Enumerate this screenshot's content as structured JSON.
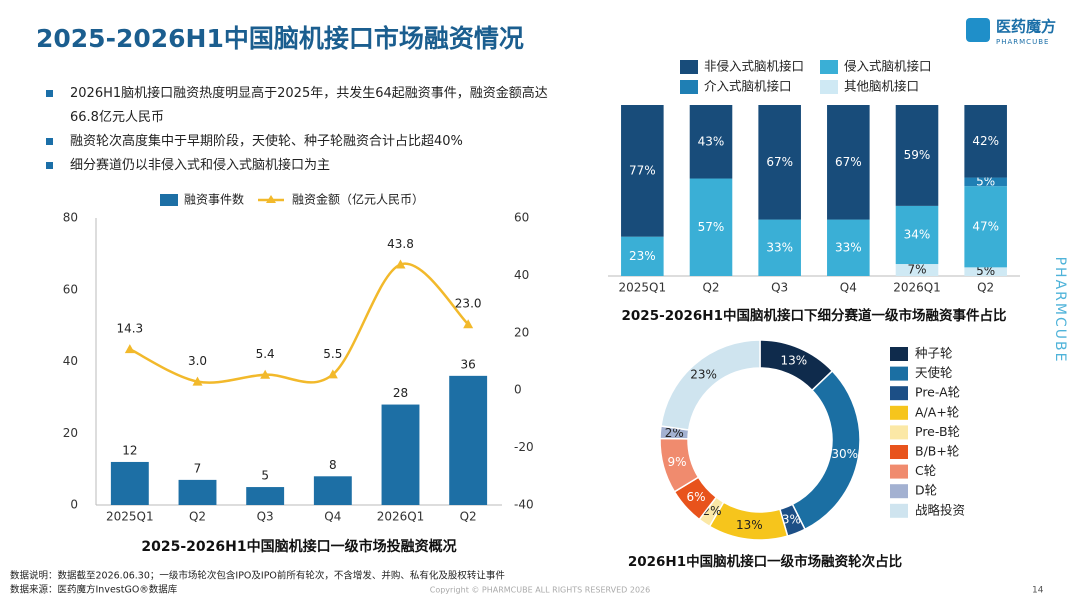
{
  "slide": {
    "title": "2025-2026H1中国脑机接口市场融资情况",
    "bullets": [
      "2026H1脑机接口融资热度明显高于2025年，共发生64起融资事件，融资金额高达66.8亿元人民币",
      "融资轮次高度集中于早期阶段，天使轮、种子轮融资合计占比超40%",
      "细分赛道仍以非侵入式和侵入式脑机接口为主"
    ],
    "logo": {
      "name": "医药魔方",
      "sub": "PHARMCUBE"
    },
    "side_brand": "PHARMCUBE",
    "notes": [
      "数据说明：数据截至2026.06.30；一级市场轮次包含IPO及IPO前所有轮次，不含增发、并购、私有化及股权转让事件",
      "数据来源：医药魔方InvestGO®数据库"
    ],
    "copyright": "Copyright © PHARMCUBE ALL RIGHTS RESERVED 2026",
    "page": 14
  },
  "chart_data": [
    {
      "type": "combo",
      "title": "2025-2026H1中国脑机接口一级市场投融资概况",
      "categories": [
        "2025Q1",
        "Q2",
        "Q3",
        "Q4",
        "2026Q1",
        "Q2"
      ],
      "series": [
        {
          "name": "融资事件数",
          "type": "bar",
          "color": "#1d6fa5",
          "values": [
            12,
            7,
            5,
            8,
            28,
            36
          ]
        },
        {
          "name": "融资金额（亿元人民币）",
          "type": "line",
          "axis": "y2",
          "color": "#f2b92b",
          "values": [
            14.3,
            3.0,
            5.4,
            5.5,
            43.8,
            23.0
          ],
          "value_labels": [
            "14.3",
            "3.0",
            "5.4",
            "5.5",
            "43.8",
            "23.0"
          ]
        }
      ],
      "ylim": [
        0,
        80
      ],
      "yticks": [
        0,
        20,
        40,
        60,
        80
      ],
      "y2lim": [
        -40,
        60
      ],
      "y2ticks": [
        -40,
        -20,
        0,
        20,
        40,
        60
      ]
    },
    {
      "type": "stacked100",
      "title": "2025-2026H1中国脑机接口下细分赛道一级市场融资事件占比",
      "categories": [
        "2025Q1",
        "Q2",
        "Q3",
        "Q4",
        "2026Q1",
        "Q2"
      ],
      "series": [
        {
          "name": "其他脑机接口",
          "color": "#cfe9f4",
          "values": [
            0,
            0,
            0,
            0,
            7,
            5
          ],
          "value_labels": [
            null,
            null,
            null,
            null,
            "7%",
            "5%"
          ]
        },
        {
          "name": "侵入式脑机接口",
          "color": "#3aafd6",
          "values": [
            23,
            57,
            33,
            33,
            34,
            47
          ],
          "value_labels": [
            "23%",
            "57%",
            "33%",
            "33%",
            "34%",
            "47%"
          ]
        },
        {
          "name": "介入式脑机接口",
          "color": "#1f7fb4",
          "values": [
            0,
            0,
            0,
            0,
            0,
            5
          ],
          "value_labels": [
            null,
            null,
            null,
            null,
            null,
            "5%"
          ]
        },
        {
          "name": "非侵入式脑机接口",
          "color": "#184c7a",
          "values": [
            77,
            43,
            67,
            67,
            59,
            42
          ],
          "value_labels": [
            "77%",
            "43%",
            "67%",
            "67%",
            "59%",
            "42%"
          ]
        }
      ]
    },
    {
      "type": "donut",
      "title": "2026H1中国脑机接口一级市场融资轮次占比",
      "categories": [
        "种子轮",
        "天使轮",
        "Pre-A轮",
        "A/A+轮",
        "Pre-B轮",
        "B/B+轮",
        "C轮",
        "D轮",
        "战略投资"
      ],
      "values": [
        13,
        30,
        3,
        13,
        2,
        6,
        9,
        2,
        23
      ],
      "value_labels": [
        "13%",
        "30%",
        "3%",
        "13%",
        "2%",
        "6%",
        "9%",
        "2%",
        "23%"
      ],
      "colors": [
        "#0f2b4c",
        "#1b6fa3",
        "#1c4f86",
        "#f6c51c",
        "#fbe8a6",
        "#e8531c",
        "#f08b6e",
        "#a3b1d1",
        "#cfe4ef"
      ]
    }
  ]
}
